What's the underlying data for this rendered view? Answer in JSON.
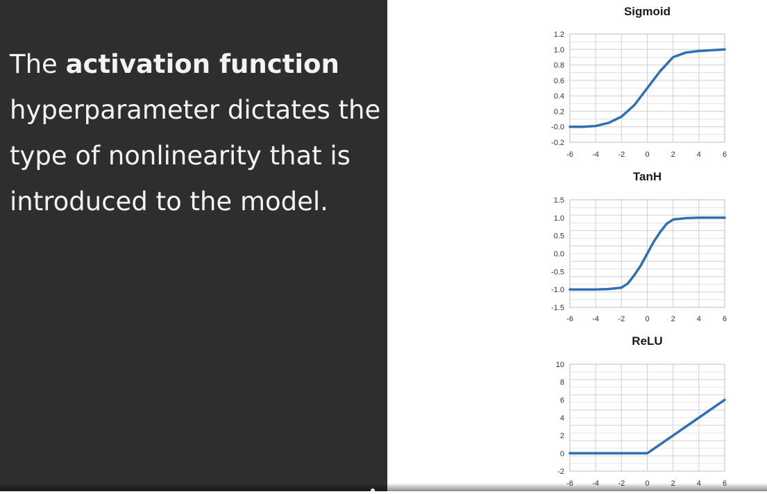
{
  "slide": {
    "text_before": "The ",
    "text_bold": "activation function",
    "text_after": " hyperparameter dictates the type of nonlinearity that is introduced to the model."
  },
  "colors": {
    "panel_bg": "#2d2e30",
    "text": "#f3f3f3",
    "curve": "#2f6fb5",
    "grid": "#cfcfcf"
  },
  "chart_data": [
    {
      "type": "line",
      "title": "Sigmoid",
      "xlabel": "",
      "ylabel": "",
      "xlim": [
        -6,
        6
      ],
      "ylim": [
        -0.2,
        1.2
      ],
      "x_ticks": [
        "-6",
        "-4",
        "-2",
        "0",
        "2",
        "4",
        "6"
      ],
      "y_ticks": [
        "1.2",
        "1.0",
        "0.8",
        "0.6",
        "0.4",
        "0.2",
        "-0.0",
        "-0.2"
      ],
      "grid": true,
      "series": [
        {
          "x": [
            -6,
            -5,
            -4,
            -3,
            -2,
            -1,
            0,
            1,
            2,
            3,
            4,
            5,
            6
          ],
          "values": [
            0.0,
            0.0,
            0.01,
            0.05,
            0.13,
            0.28,
            0.5,
            0.72,
            0.9,
            0.96,
            0.98,
            0.99,
            1.0
          ]
        }
      ]
    },
    {
      "type": "line",
      "title": "TanH",
      "xlabel": "",
      "ylabel": "",
      "xlim": [
        -6,
        6
      ],
      "ylim": [
        -1.5,
        1.5
      ],
      "x_ticks": [
        "-6",
        "-4",
        "-2",
        "0",
        "2",
        "4",
        "6"
      ],
      "y_ticks": [
        "1.5",
        "1.0",
        "0.5",
        "0.0",
        "-0.5",
        "-1.0",
        "-1.5"
      ],
      "grid": true,
      "series": [
        {
          "x": [
            -6,
            -5,
            -4,
            -3,
            -2,
            -1.5,
            -1,
            -0.5,
            0,
            0.5,
            1,
            1.5,
            2,
            3,
            4,
            5,
            6
          ],
          "values": [
            -1.0,
            -1.0,
            -1.0,
            -0.99,
            -0.95,
            -0.83,
            -0.6,
            -0.33,
            0.0,
            0.33,
            0.6,
            0.83,
            0.95,
            0.99,
            1.0,
            1.0,
            1.0
          ]
        }
      ]
    },
    {
      "type": "line",
      "title": "ReLU",
      "xlabel": "",
      "ylabel": "",
      "xlim": [
        -6,
        6
      ],
      "ylim": [
        -2,
        10
      ],
      "x_ticks": [
        "-6",
        "-4",
        "-2",
        "0",
        "2",
        "4",
        "6"
      ],
      "y_ticks": [
        "10",
        "8",
        "6",
        "4",
        "2",
        "0",
        "-2"
      ],
      "grid": true,
      "series": [
        {
          "x": [
            -6,
            -4,
            -2,
            0,
            2,
            4,
            6
          ],
          "values": [
            0,
            0,
            0,
            0,
            2,
            4,
            6
          ]
        }
      ]
    }
  ]
}
